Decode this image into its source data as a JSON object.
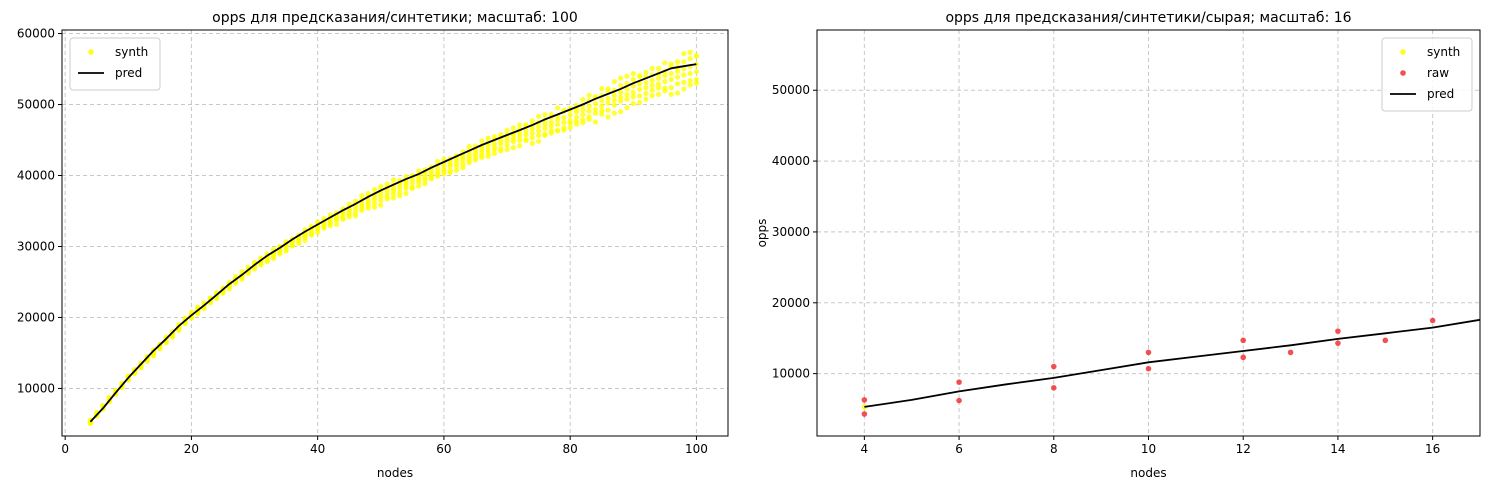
{
  "chart_data": [
    {
      "type": "scatter",
      "title": "opps для предсказания/синтетики; масштаб: 100",
      "xlabel": "nodes",
      "ylabel": "",
      "xlim": [
        -0.5,
        105
      ],
      "ylim": [
        3300,
        60500
      ],
      "xticks": [
        0,
        20,
        40,
        60,
        80,
        100
      ],
      "yticks": [
        10000,
        20000,
        30000,
        40000,
        50000,
        60000
      ],
      "grid": true,
      "legend_position": "upper-left",
      "legend": [
        {
          "label": "synth",
          "kind": "marker",
          "color": "#ffff00"
        },
        {
          "label": "pred",
          "kind": "line",
          "color": "#000000"
        }
      ],
      "series": [
        {
          "name": "pred",
          "kind": "line",
          "color": "#000000",
          "x": [
            4,
            6,
            8,
            10,
            12,
            14,
            16,
            18,
            20,
            22,
            24,
            26,
            28,
            30,
            32,
            34,
            36,
            38,
            40,
            42,
            44,
            46,
            48,
            50,
            52,
            54,
            56,
            58,
            60,
            62,
            64,
            66,
            68,
            70,
            72,
            74,
            76,
            78,
            80,
            82,
            84,
            86,
            88,
            90,
            92,
            94,
            96,
            98,
            100
          ],
          "y": [
            5300,
            7200,
            9400,
            11500,
            13400,
            15300,
            17000,
            18800,
            20300,
            21700,
            23200,
            24700,
            26000,
            27400,
            28700,
            29800,
            31000,
            32100,
            33100,
            34100,
            35100,
            36000,
            37000,
            37900,
            38700,
            39500,
            40200,
            41100,
            41900,
            42700,
            43500,
            44300,
            45000,
            45700,
            46400,
            47100,
            47900,
            48600,
            49300,
            50000,
            50800,
            51500,
            52200,
            53000,
            53700,
            54400,
            55100,
            55400,
            55700
          ]
        },
        {
          "name": "synth",
          "kind": "band",
          "color": "#ffff00",
          "x_step": 1,
          "x": [
            4,
            10,
            20,
            30,
            40,
            50,
            60,
            70,
            80,
            90,
            100
          ],
          "y_low": [
            5000,
            11100,
            19800,
            26700,
            31900,
            35800,
            39800,
            43500,
            46000,
            49700,
            52300
          ],
          "y_high": [
            5600,
            11900,
            20800,
            27900,
            33600,
            38700,
            42400,
            46700,
            50300,
            54600,
            58000
          ]
        }
      ]
    },
    {
      "type": "scatter",
      "title": "opps для предсказания/синтетики/сырая; масштаб: 16",
      "xlabel": "nodes",
      "ylabel": "opps",
      "xlim": [
        3,
        17
      ],
      "ylim": [
        1200,
        58500
      ],
      "xticks": [
        4,
        6,
        8,
        10,
        12,
        14,
        16
      ],
      "yticks": [
        10000,
        20000,
        30000,
        40000,
        50000
      ],
      "grid": true,
      "legend_position": "upper-right",
      "legend": [
        {
          "label": "synth",
          "kind": "marker",
          "color": "#ffff00"
        },
        {
          "label": "raw",
          "kind": "marker",
          "color": "#ee3333"
        },
        {
          "label": "pred",
          "kind": "line",
          "color": "#000000"
        }
      ],
      "series": [
        {
          "name": "synth",
          "kind": "marker",
          "color": "#ffff00",
          "x": [
            4
          ],
          "y": [
            5300
          ]
        },
        {
          "name": "raw",
          "kind": "marker",
          "color": "#ee3333",
          "x": [
            4,
            4,
            6,
            6,
            8,
            8,
            10,
            10,
            12,
            12,
            13,
            14,
            14,
            15,
            16
          ],
          "y": [
            6300,
            4300,
            8800,
            6200,
            11000,
            8000,
            13000,
            10700,
            14700,
            12300,
            13000,
            16000,
            14300,
            14700,
            17500
          ]
        },
        {
          "name": "pred",
          "kind": "line",
          "color": "#000000",
          "x": [
            4,
            5,
            6,
            7,
            8,
            9,
            10,
            11,
            12,
            13,
            14,
            15,
            16,
            17
          ],
          "y": [
            5300,
            6300,
            7500,
            8500,
            9400,
            10500,
            11600,
            12400,
            13200,
            14000,
            14900,
            15700,
            16500,
            17600
          ]
        }
      ]
    }
  ]
}
